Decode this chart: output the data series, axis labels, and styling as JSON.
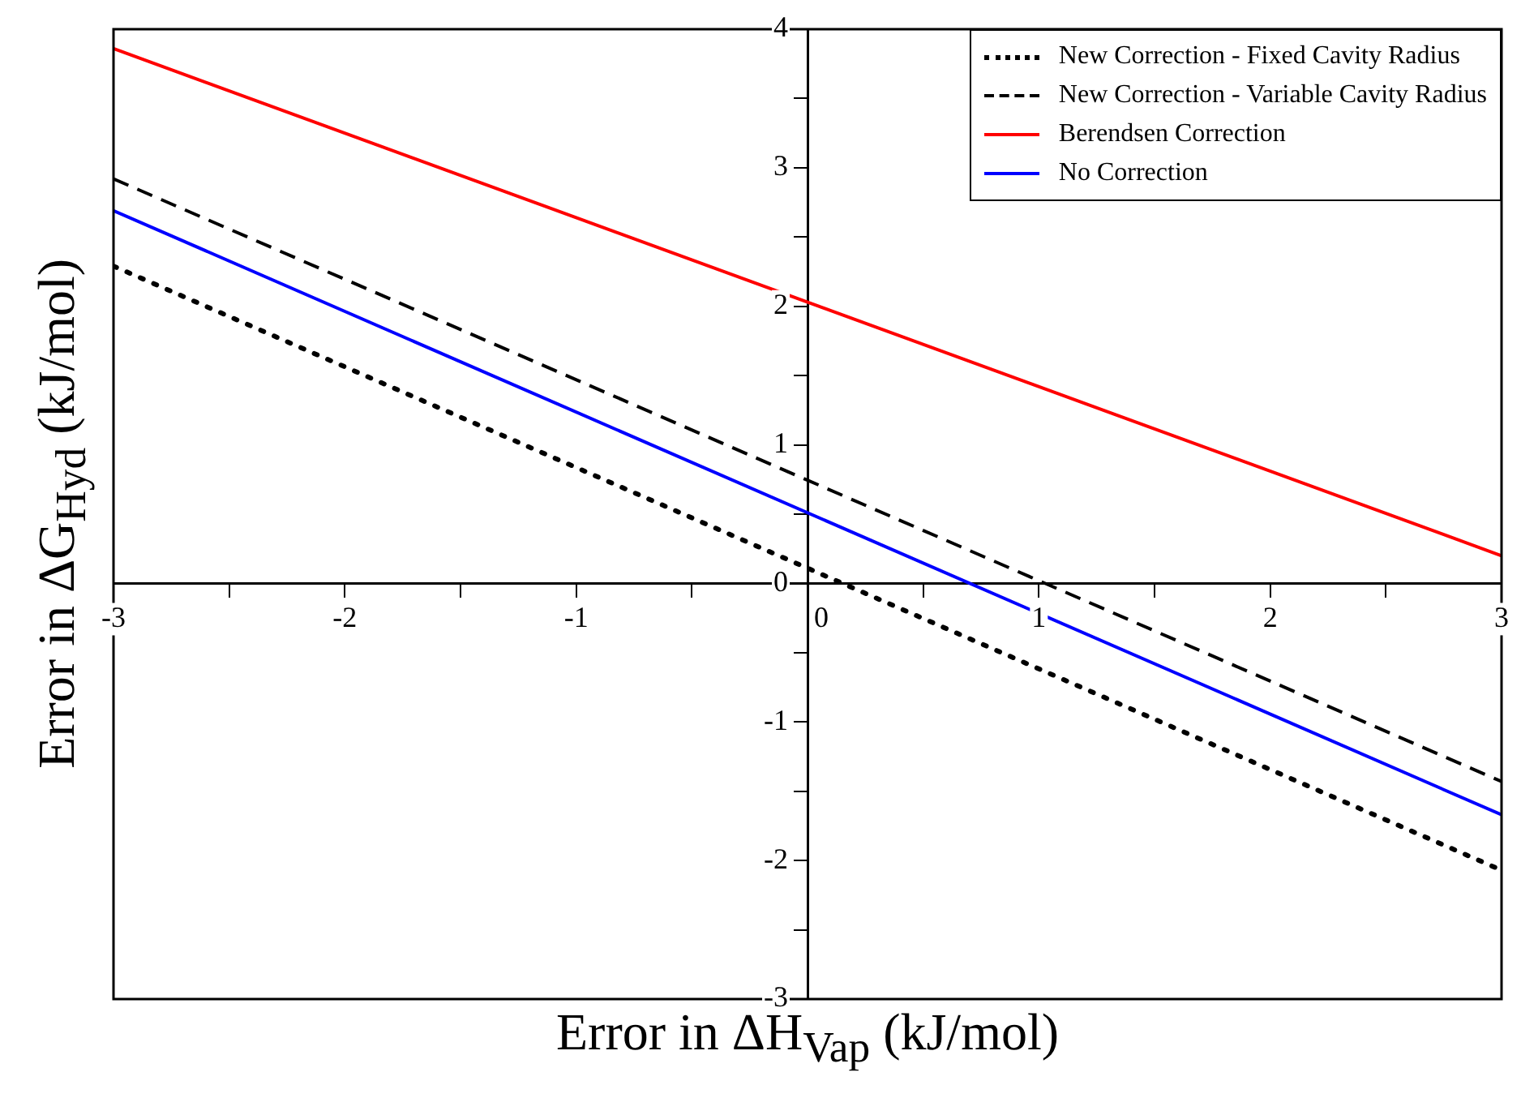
{
  "chart_data": {
    "type": "line",
    "xlabel": "Error in  ΔH$_{Vap}$ (kJ/mol)",
    "ylabel": "Error in  ΔG$_{Hyd}$ (kJ/mol)",
    "xlim": [
      -3,
      3
    ],
    "ylim": [
      -3,
      4
    ],
    "xticks": [
      -3,
      {
        "value": -2.5,
        "label": null
      },
      -2,
      {
        "value": -1.5,
        "label": null
      },
      -1,
      {
        "value": -0.5,
        "label": null
      },
      0,
      {
        "value": 0.5,
        "label": null
      },
      1,
      {
        "value": 1.5,
        "label": null
      },
      2,
      {
        "value": 2.5,
        "label": null
      },
      3
    ],
    "yticks": [
      -3,
      {
        "value": -2.5,
        "label": null
      },
      -2,
      {
        "value": -1.5,
        "label": null
      },
      -1,
      {
        "value": -0.5,
        "label": null
      },
      0,
      {
        "value": 0.5,
        "label": null
      },
      1,
      {
        "value": 1.5,
        "label": null
      },
      2,
      {
        "value": 2.5,
        "label": null
      },
      3,
      {
        "value": 3.5,
        "label": null
      },
      4
    ],
    "grid": false,
    "legend": "top right",
    "marker": "none",
    "x": [
      -3,
      3
    ],
    "series": [
      {
        "name": "New Correction - Fixed Cavity Radius",
        "color": "#000000",
        "line_style": "dotted",
        "values": [
          2.29,
          -2.07
        ]
      },
      {
        "name": "New Correction - Variable Cavity Radius",
        "color": "#000000",
        "line_style": "dashed",
        "values": [
          2.92,
          -1.43
        ]
      },
      {
        "name": "Berendsen Correction",
        "color": "#ff0000",
        "line_style": "solid",
        "values": [
          3.86,
          0.2
        ]
      },
      {
        "name": "No Correction",
        "color": "#0000ff",
        "line_style": "solid",
        "values": [
          2.69,
          -1.67
        ]
      }
    ]
  }
}
